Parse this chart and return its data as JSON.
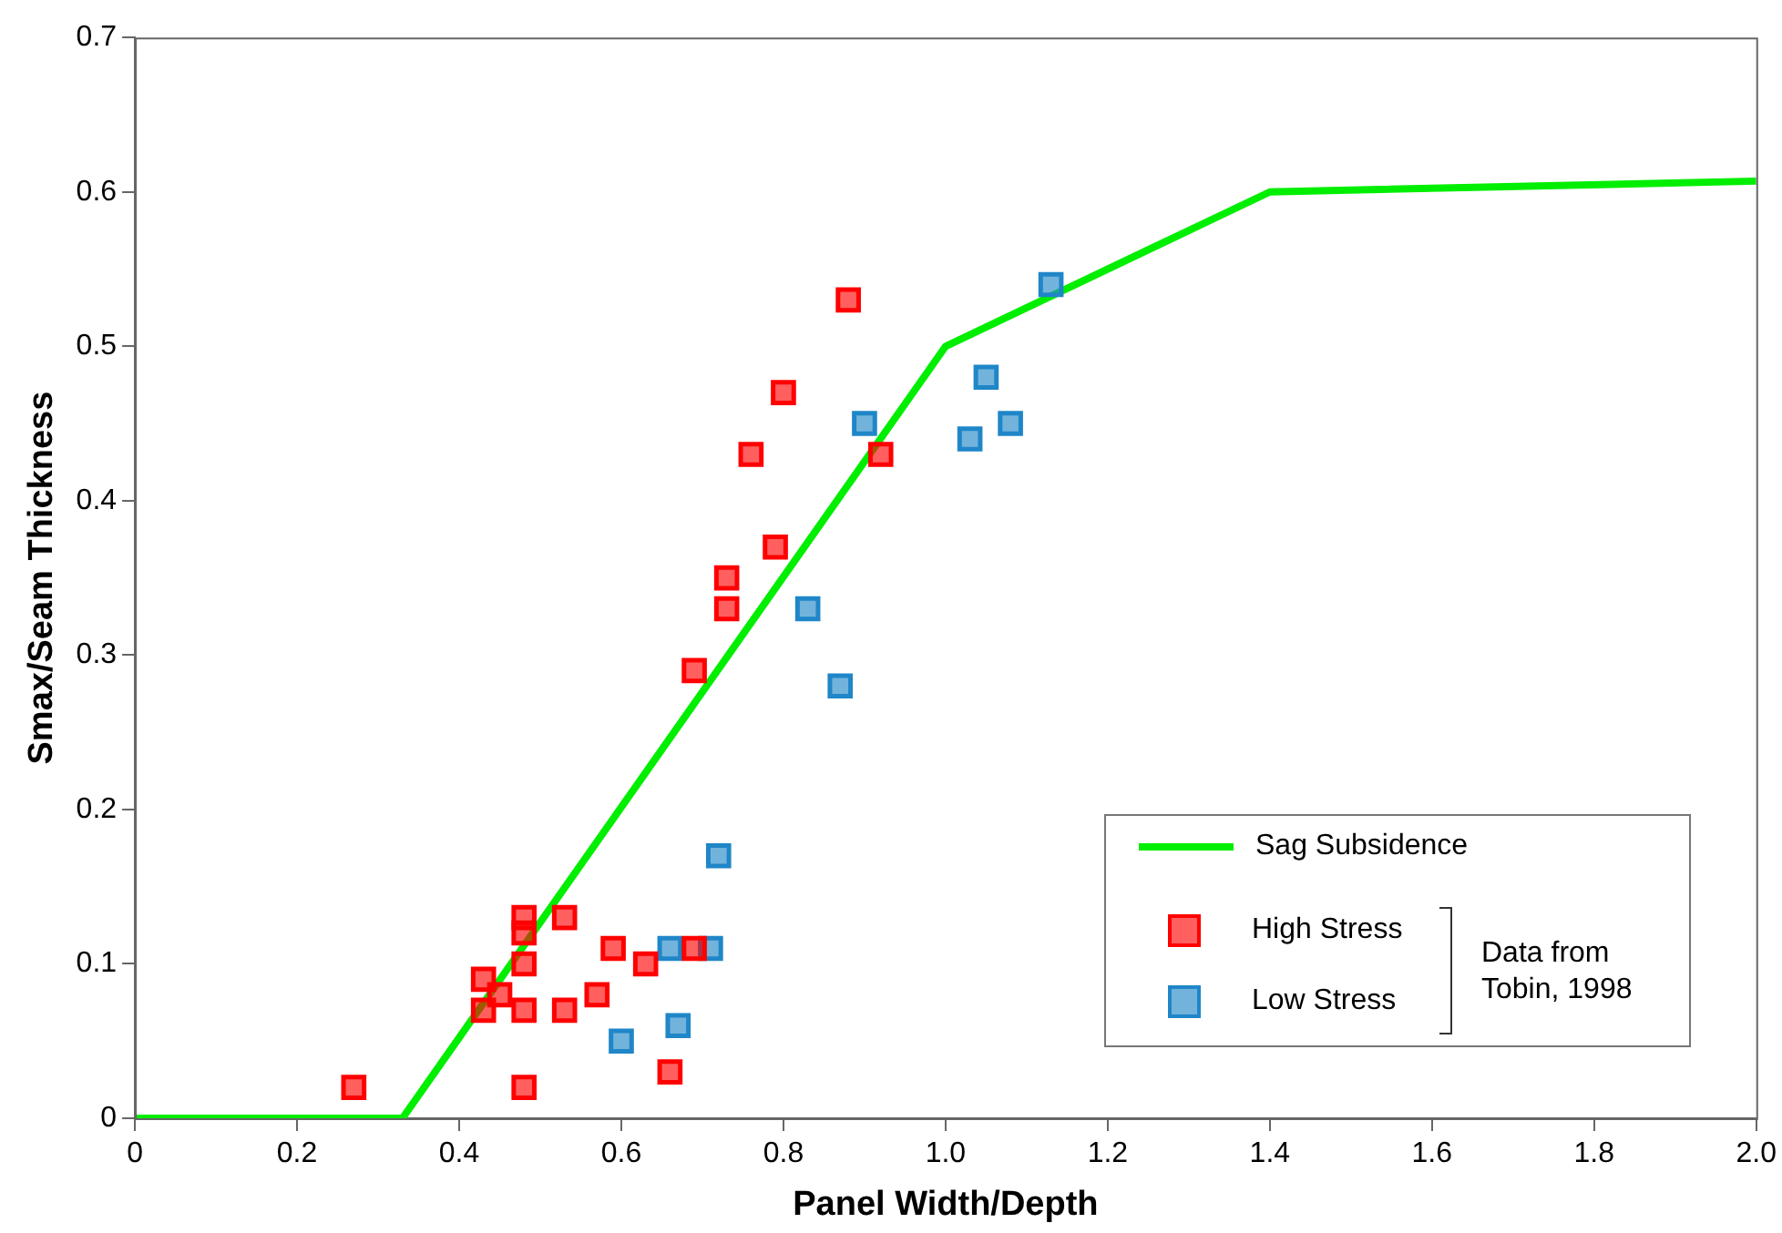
{
  "chart_data": {
    "type": "scatter",
    "xlabel": "Panel Width/Depth",
    "ylabel": "Smax/Seam Thickness",
    "xlim": [
      0,
      2.0
    ],
    "ylim": [
      0,
      0.7
    ],
    "xticks": [
      0,
      0.2,
      0.4,
      0.6,
      0.8,
      {
        "value": 1.0,
        "label": "1.0"
      },
      1.2,
      1.4,
      1.6,
      1.8,
      {
        "value": 2.0,
        "label": "2.0"
      }
    ],
    "yticks": [
      0,
      0.1,
      0.2,
      0.3,
      0.4,
      0.5,
      0.6,
      0.7
    ],
    "grid": false,
    "legend": "bottom right",
    "marker": "square",
    "annotations": [
      "Data from Tobin, 1998"
    ],
    "series": [
      {
        "name": "Sag Subsidence",
        "type": "line",
        "color": "#00ee00",
        "line_style": "solid",
        "marker": "none",
        "x": [
          0,
          0.33,
          1.0,
          1.4,
          2.0
        ],
        "values": [
          0,
          0,
          0.5,
          0.6,
          0.607
        ]
      },
      {
        "name": "High Stress",
        "color": "#ff0000",
        "x": [
          0.27,
          0.43,
          0.43,
          0.45,
          0.48,
          0.48,
          0.48,
          0.48,
          0.48,
          0.53,
          0.53,
          0.57,
          0.59,
          0.63,
          0.66,
          0.69,
          0.69,
          0.73,
          0.73,
          0.79,
          0.76,
          0.8,
          0.88,
          0.92
        ],
        "values": [
          0.02,
          0.09,
          0.07,
          0.08,
          0.13,
          0.12,
          0.1,
          0.07,
          0.02,
          0.13,
          0.07,
          0.08,
          0.11,
          0.1,
          0.03,
          0.11,
          0.29,
          0.33,
          0.35,
          0.37,
          0.43,
          0.47,
          0.53,
          0.43
        ]
      },
      {
        "name": "Low Stress",
        "color": "#1f86c8",
        "x": [
          0.6,
          0.66,
          0.67,
          0.71,
          0.72,
          0.83,
          0.87,
          0.9,
          1.03,
          1.05,
          1.08,
          1.13
        ],
        "values": [
          0.05,
          0.11,
          0.06,
          0.11,
          0.17,
          0.33,
          0.28,
          0.45,
          0.44,
          0.48,
          0.45,
          0.54
        ]
      }
    ]
  }
}
